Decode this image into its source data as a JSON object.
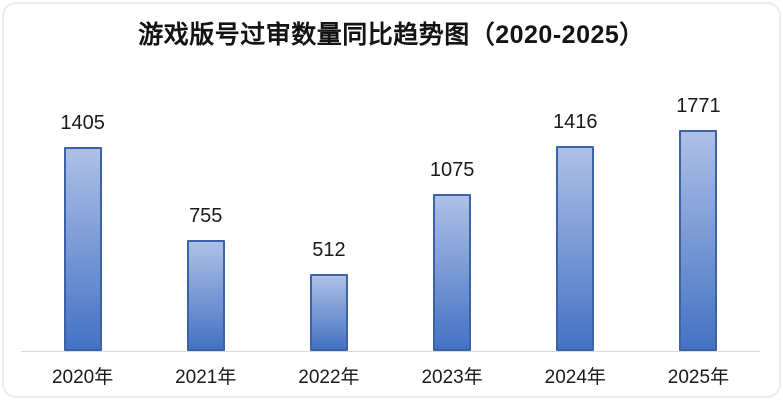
{
  "chart_data": {
    "type": "bar",
    "title": "游戏版号过审数量同比趋势图（2020-2025）",
    "categories": [
      "2020年",
      "2021年",
      "2022年",
      "2023年",
      "2024年",
      "2025年"
    ],
    "values": [
      1405,
      755,
      512,
      1075,
      1416,
      1771
    ],
    "xlabel": "",
    "ylabel": "",
    "ylim": [
      0,
      1800
    ],
    "grid": false,
    "legend": false,
    "value_labels_shown": true,
    "colors": {
      "bar_gradient_top": "#aec0e6",
      "bar_gradient_bottom": "#4472c4",
      "bar_border": "#3d62a8",
      "axis_line": "#d9d9d9",
      "text": "#1a1a1a",
      "card_border": "#ececec",
      "background": "#ffffff"
    }
  }
}
